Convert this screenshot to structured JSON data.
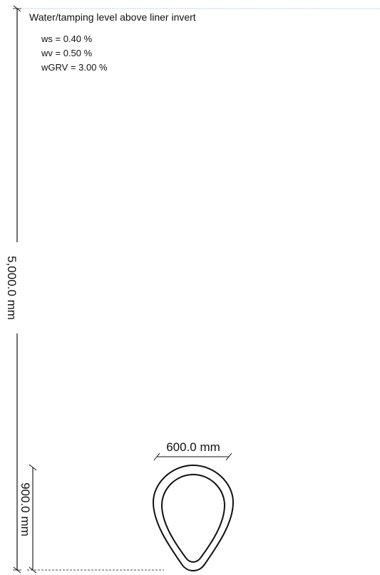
{
  "title": "Water/tamping level above liner invert",
  "parameters": [
    {
      "label": "ws = 0.40 %"
    },
    {
      "label": "wv = 0.50 %"
    },
    {
      "label": "wGRV = 3.00 %"
    }
  ],
  "dimensions": {
    "total_height": "5,000.0 mm",
    "pipe_height": "900.0 mm",
    "pipe_width": "600.0 mm"
  },
  "colors": {
    "line": "#111111",
    "top_rule": "#9fb4c8"
  }
}
